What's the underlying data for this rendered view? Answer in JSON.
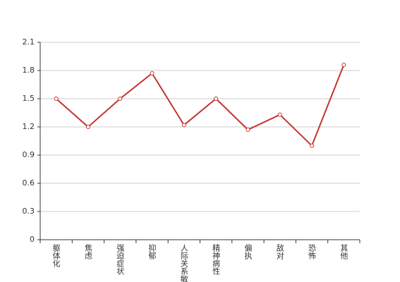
{
  "chart_data": {
    "type": "line",
    "categories": [
      "躯体化",
      "焦虑",
      "强迫症状",
      "抑郁",
      "人际关系敏感",
      "精神病性",
      "偏执",
      "敌对",
      "恐怖",
      "其他"
    ],
    "values": [
      1.5,
      1.2,
      1.5,
      1.77,
      1.22,
      1.5,
      1.17,
      1.33,
      1.0,
      1.86
    ],
    "color": "#c23531",
    "ylim": [
      0,
      2.1
    ],
    "yticks": [
      0,
      0.3,
      0.6,
      0.9,
      1.2,
      1.5,
      1.8,
      2.1
    ],
    "grid": true
  }
}
